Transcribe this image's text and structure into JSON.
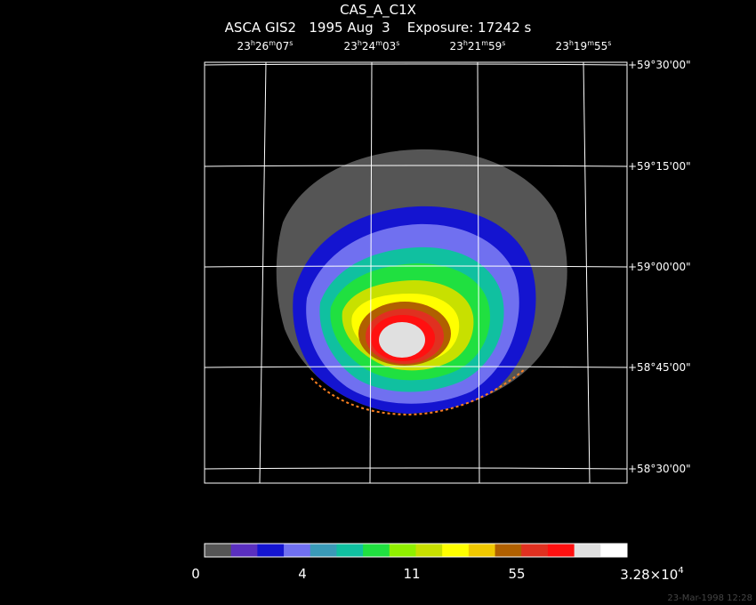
{
  "header": {
    "object": "CAS_A_C1X",
    "instrument": "ASCA GIS2",
    "date": "1995 Aug  3",
    "exposure": "Exposure: 17242 s"
  },
  "ra_labels": [
    {
      "h": "23",
      "m": "26",
      "s": "07"
    },
    {
      "h": "23",
      "m": "24",
      "s": "03"
    },
    {
      "h": "23",
      "m": "21",
      "s": "59"
    },
    {
      "h": "23",
      "m": "19",
      "s": "55"
    }
  ],
  "dec_labels": [
    "+59°30'00\"",
    "+59°15'00\"",
    "+59°00'00\"",
    "+58°45'00\"",
    "+58°30'00\""
  ],
  "colorbar": {
    "colors": [
      "#555555",
      "#5a2fbf",
      "#1414d0",
      "#7070f0",
      "#3a9ab8",
      "#10c0a0",
      "#20e040",
      "#90f000",
      "#c8e000",
      "#ffff00",
      "#f0c800",
      "#b06000",
      "#e03020",
      "#ff1010",
      "#e0e0e0",
      "#ffffff"
    ],
    "ticks": [
      {
        "label": "0"
      },
      {
        "label": "4"
      },
      {
        "label": "11"
      },
      {
        "label": "55"
      },
      {
        "label": "3.28×10",
        "sup": "4"
      }
    ]
  },
  "stamp": "23-Mar-1998 12:28"
}
